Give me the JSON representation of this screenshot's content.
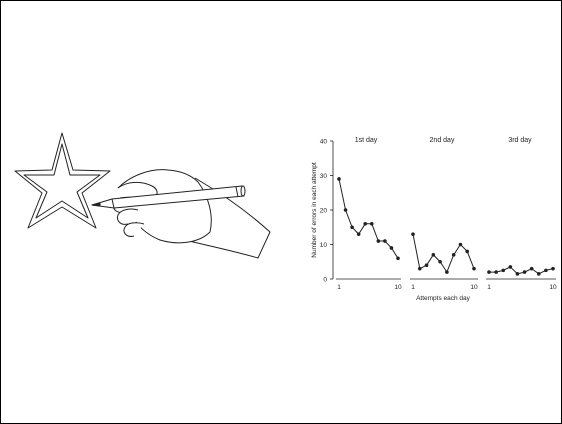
{
  "chart_data": {
    "type": "line",
    "ylabel": "Number of errors in each attempt",
    "xlabel": "Attempts each day",
    "ylim": [
      0,
      40
    ],
    "yticks": [
      "0",
      "10",
      "20",
      "30",
      "40"
    ],
    "xticks": [
      "1",
      "10"
    ],
    "grid": false,
    "legend": "none",
    "x": [
      1,
      2,
      3,
      4,
      5,
      6,
      7,
      8,
      9,
      10
    ],
    "series": [
      {
        "name": "1st day",
        "values": [
          29,
          20,
          15,
          13,
          16,
          16,
          11,
          11,
          9,
          6
        ]
      },
      {
        "name": "2nd day",
        "values": [
          13,
          3,
          4,
          7,
          5,
          2,
          7,
          10,
          8,
          3
        ]
      },
      {
        "name": "3rd day",
        "values": [
          2,
          2,
          2.5,
          3.5,
          1.5,
          2,
          3,
          1.5,
          2.5,
          3
        ]
      }
    ]
  },
  "illustration": {
    "description_icon": "hand-drawing-star-icon"
  },
  "colors": {
    "ink": "#222222",
    "frame": "#000000",
    "background": "#ffffff"
  }
}
